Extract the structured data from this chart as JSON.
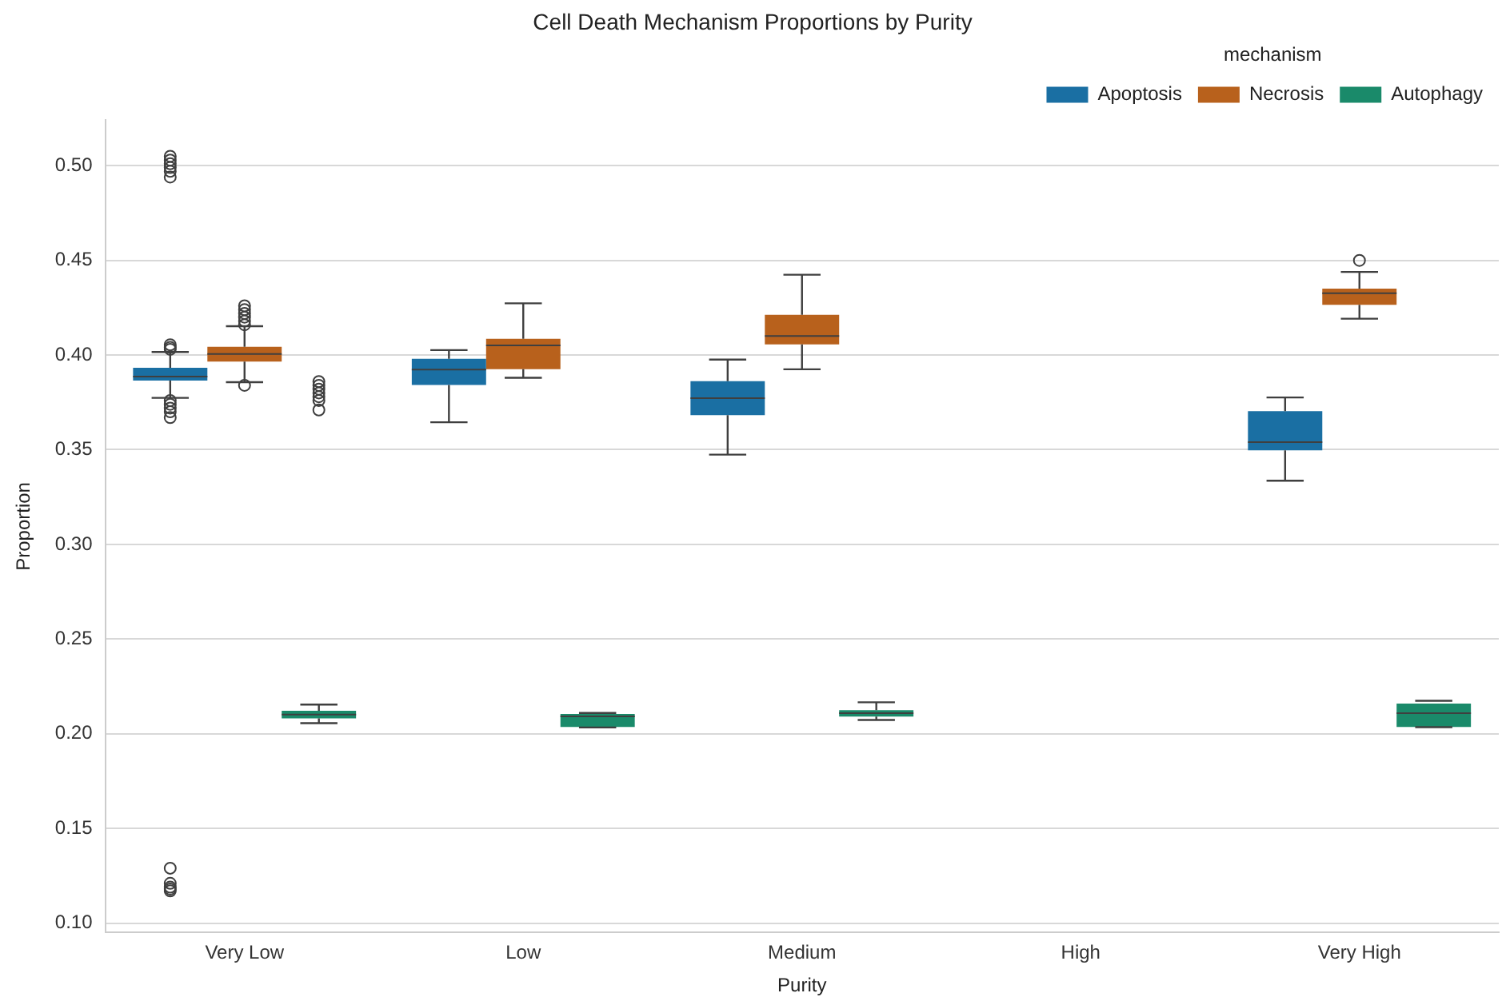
{
  "chart_data": {
    "type": "box",
    "title": "Cell Death Mechanism Proportions by Purity",
    "xlabel": "Purity",
    "ylabel": "Proportion",
    "legend_title": "mechanism",
    "legend": "top right",
    "grid": "y",
    "categories": [
      "Very Low",
      "Low",
      "Medium",
      "High",
      "Very High"
    ],
    "ylim": [
      0.095,
      0.524
    ],
    "yticks": [
      {
        "value": 0.1,
        "label": "0.10"
      },
      {
        "value": 0.15,
        "label": "0.15"
      },
      {
        "value": 0.2,
        "label": "0.20"
      },
      {
        "value": 0.25,
        "label": "0.25"
      },
      {
        "value": 0.3,
        "label": "0.30"
      },
      {
        "value": 0.35,
        "label": "0.35"
      },
      {
        "value": 0.4,
        "label": "0.40"
      },
      {
        "value": 0.45,
        "label": "0.45"
      },
      {
        "value": 0.5,
        "label": "0.50"
      }
    ],
    "series": [
      {
        "name": "Apoptosis",
        "color": "#1a6fa3",
        "boxes": [
          {
            "low": 0.3774,
            "q1": 0.3865,
            "median": 0.3886,
            "q3": 0.3933,
            "high": 0.4016,
            "outliers": [
              0.403,
              0.404,
              0.4054,
              0.376,
              0.374,
              0.372,
              0.37,
              0.367,
              0.494,
              0.497,
              0.499,
              0.501,
              0.503,
              0.505,
              0.129,
              0.121,
              0.119,
              0.118,
              0.117
            ]
          },
          {
            "low": 0.3645,
            "q1": 0.3842,
            "median": 0.3923,
            "q3": 0.398,
            "high": 0.4026
          },
          {
            "low": 0.3474,
            "q1": 0.3683,
            "median": 0.3772,
            "q3": 0.3862,
            "high": 0.3976
          },
          null,
          {
            "low": 0.3336,
            "q1": 0.3497,
            "median": 0.354,
            "q3": 0.3704,
            "high": 0.3776
          }
        ]
      },
      {
        "name": "Necrosis",
        "color": "#b8611c",
        "boxes": [
          {
            "low": 0.3857,
            "q1": 0.3965,
            "median": 0.4006,
            "q3": 0.4044,
            "high": 0.4152,
            "outliers": [
              0.416,
              0.418,
              0.42,
              0.422,
              0.424,
              0.426,
              0.384
            ]
          },
          {
            "low": 0.388,
            "q1": 0.3925,
            "median": 0.4051,
            "q3": 0.4086,
            "high": 0.4273
          },
          {
            "low": 0.3925,
            "q1": 0.4056,
            "median": 0.4101,
            "q3": 0.4212,
            "high": 0.4424
          },
          null,
          {
            "low": 0.4192,
            "q1": 0.4265,
            "median": 0.4326,
            "q3": 0.4351,
            "high": 0.4439,
            "outliers": [
              0.45
            ]
          }
        ]
      },
      {
        "name": "Autophagy",
        "color": "#1a8a6a",
        "boxes": [
          {
            "low": 0.2056,
            "q1": 0.2081,
            "median": 0.2101,
            "q3": 0.2121,
            "high": 0.2154,
            "outliers": [
              0.386,
              0.384,
              0.382,
              0.38,
              0.378,
              0.376,
              0.371
            ]
          },
          {
            "low": 0.2033,
            "q1": 0.2036,
            "median": 0.2092,
            "q3": 0.2104,
            "high": 0.211
          },
          {
            "low": 0.2073,
            "q1": 0.2091,
            "median": 0.2109,
            "q3": 0.2124,
            "high": 0.2166
          },
          null,
          {
            "low": 0.2035,
            "q1": 0.2036,
            "median": 0.2109,
            "q3": 0.2159,
            "high": 0.2174
          }
        ]
      }
    ]
  }
}
